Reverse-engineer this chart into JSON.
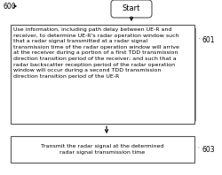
{
  "bg_color": "#ffffff",
  "label_600": "600",
  "label_601": "601",
  "label_603": "603",
  "start_text": "Start",
  "box1_text": "Use information, including path delay between UE-R and\nreceiver, to determine UE-R's radar operation window such\nthat a radar signal transmitted at a radar signal\ntransmission time of the radar operation window will arrive\nat the receiver during a portion of a first TDD transmission\ndirection transition period of the receiver; and such that a\nradar backscatter reception period of the radar operation\nwindow will occur during a second TDD transmission\ndirection transition period of the UE-R",
  "box2_text": "Transmit the radar signal at the determined\nradar signal transmission time",
  "font_size_main": 4.5,
  "font_size_label": 5.5,
  "font_size_start": 6.0,
  "fig_w": 2.5,
  "fig_h": 1.98,
  "dpi": 100
}
